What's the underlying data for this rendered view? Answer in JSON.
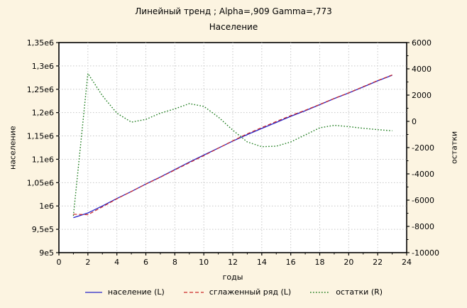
{
  "chart_data": {
    "type": "line",
    "title": "Линейный тренд ; Alpha=,909 Gamma=,773",
    "subtitle": "Население",
    "xlabel": "годы",
    "ylabel_left": "население",
    "ylabel_right": "остатки",
    "grid": "dotted",
    "legend_position": "bottom",
    "colors": {
      "background": "#fcf4e1",
      "plot_background": "#ffffff",
      "grid": "#c6c6c6",
      "axis": "#000000"
    },
    "x_axis": {
      "min": 0,
      "max": 24,
      "major_tick_labels": [
        "0",
        "2",
        "4",
        "6",
        "8",
        "10",
        "12",
        "14",
        "16",
        "18",
        "20",
        "22",
        "24"
      ],
      "major_tick_values": [
        0,
        2,
        4,
        6,
        8,
        10,
        12,
        14,
        16,
        18,
        20,
        22,
        24
      ],
      "minor_tick_values": [
        1,
        3,
        5,
        7,
        9,
        11,
        13,
        15,
        17,
        19,
        21,
        23
      ]
    },
    "y_left_axis": {
      "min": 900000,
      "max": 1350000,
      "ticks": [
        {
          "value": 900000,
          "label": "9e5"
        },
        {
          "value": 950000,
          "label": "9,5e5"
        },
        {
          "value": 1000000,
          "label": "1e6"
        },
        {
          "value": 1050000,
          "label": "1,05e6"
        },
        {
          "value": 1100000,
          "label": "1,1e6"
        },
        {
          "value": 1150000,
          "label": "1,15e6"
        },
        {
          "value": 1200000,
          "label": "1,2e6"
        },
        {
          "value": 1250000,
          "label": "1,25e6"
        },
        {
          "value": 1300000,
          "label": "1,3e6"
        },
        {
          "value": 1350000,
          "label": "1,35e6"
        }
      ]
    },
    "y_right_axis": {
      "min": -10000,
      "max": 6000,
      "minor_step": 1000,
      "ticks": [
        {
          "value": -10000,
          "label": "-10000"
        },
        {
          "value": -8000,
          "label": "-8000"
        },
        {
          "value": -6000,
          "label": "-6000"
        },
        {
          "value": -4000,
          "label": "-4000"
        },
        {
          "value": -2000,
          "label": "-2000"
        },
        {
          "value": 0,
          "label": "0"
        },
        {
          "value": 2000,
          "label": "2000"
        },
        {
          "value": 4000,
          "label": "4000"
        },
        {
          "value": 6000,
          "label": "6000"
        }
      ]
    },
    "x": [
      1,
      2,
      3,
      4,
      5,
      6,
      7,
      8,
      9,
      10,
      11,
      12,
      13,
      14,
      15,
      16,
      17,
      18,
      19,
      20,
      21,
      22,
      23
    ],
    "series": [
      {
        "name": "население (L)",
        "axis": "left",
        "style": "solid",
        "color": "#2222c8",
        "values": [
          975000,
          985000,
          1000000,
          1016000,
          1031000,
          1047000,
          1062000,
          1078000,
          1094000,
          1109000,
          1124000,
          1139000,
          1153000,
          1166000,
          1179000,
          1192000,
          1204000,
          1217000,
          1230000,
          1242000,
          1255000,
          1268000,
          1280000
        ]
      },
      {
        "name": "сглаженный ряд (L)",
        "axis": "left",
        "style": "dashed",
        "color": "#cc2828",
        "values": [
          982200,
          981350,
          998050,
          1015380,
          1031060,
          1046850,
          1061380,
          1077050,
          1092650,
          1107860,
          1123670,
          1139670,
          1154570,
          1167930,
          1180890,
          1193570,
          1205030,
          1217490,
          1230300,
          1242400,
          1255530,
          1268630,
          1280720
        ]
      },
      {
        "name": "остатки (R)",
        "axis": "right",
        "style": "dotted",
        "color": "#1e7d1e",
        "values": [
          -7200,
          3650,
          1950,
          620,
          -60,
          150,
          620,
          950,
          1350,
          1140,
          330,
          -670,
          -1570,
          -1930,
          -1890,
          -1570,
          -1030,
          -490,
          -300,
          -400,
          -530,
          -630,
          -720
        ]
      }
    ]
  }
}
